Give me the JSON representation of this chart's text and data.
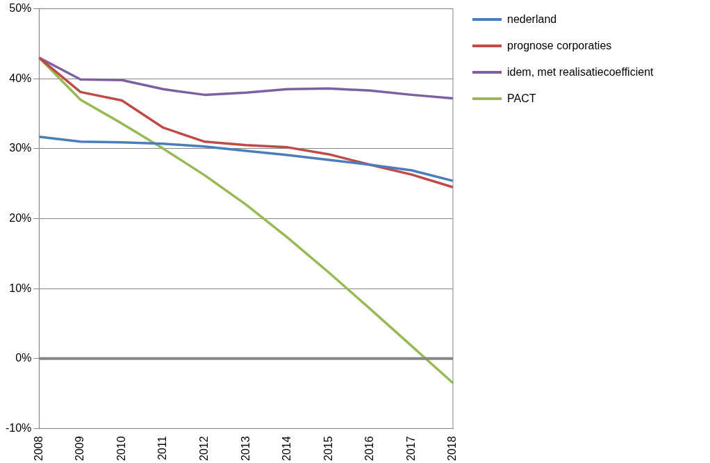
{
  "chart_data": {
    "type": "line",
    "categories": [
      "2008",
      "2009",
      "2010",
      "2011",
      "2012",
      "2013",
      "2014",
      "2015",
      "2016",
      "2017",
      "2018"
    ],
    "series": [
      {
        "name": "nederland",
        "color": "#4a7ebb",
        "values": [
          31.7,
          31.0,
          30.9,
          30.7,
          30.3,
          29.7,
          29.1,
          28.4,
          27.7,
          26.9,
          25.4
        ]
      },
      {
        "name": "prognose corporaties",
        "color": "#be4b48",
        "values": [
          43,
          38.1,
          36.9,
          33.0,
          31.0,
          30.5,
          30.2,
          29.2,
          27.7,
          26.3,
          24.5
        ]
      },
      {
        "name": "idem, met realisatiecoefficient",
        "color": "#7d60a0",
        "values": [
          43,
          39.9,
          39.8,
          38.5,
          37.7,
          38.0,
          38.5,
          38.6,
          38.3,
          37.7,
          37.2
        ]
      },
      {
        "name": "PACT",
        "color": "#98b954",
        "values": [
          43,
          37.0,
          33.6,
          30.0,
          26.2,
          22.0,
          17.3,
          12.3,
          7.1,
          1.8,
          -3.5
        ]
      }
    ],
    "ylim": [
      -10,
      50
    ],
    "yticks": [
      {
        "value": -10,
        "label": "-10%"
      },
      {
        "value": 0,
        "label": "0%"
      },
      {
        "value": 10,
        "label": "10%"
      },
      {
        "value": 20,
        "label": "20%"
      },
      {
        "value": 30,
        "label": "30%"
      },
      {
        "value": 40,
        "label": "40%"
      },
      {
        "value": 50,
        "label": "50%"
      }
    ],
    "ref_lines": [
      {
        "axis": "y",
        "value": 0,
        "color": "#868686"
      }
    ],
    "grid": "y",
    "legend": "right",
    "marker": "none",
    "line_style": "solid"
  }
}
